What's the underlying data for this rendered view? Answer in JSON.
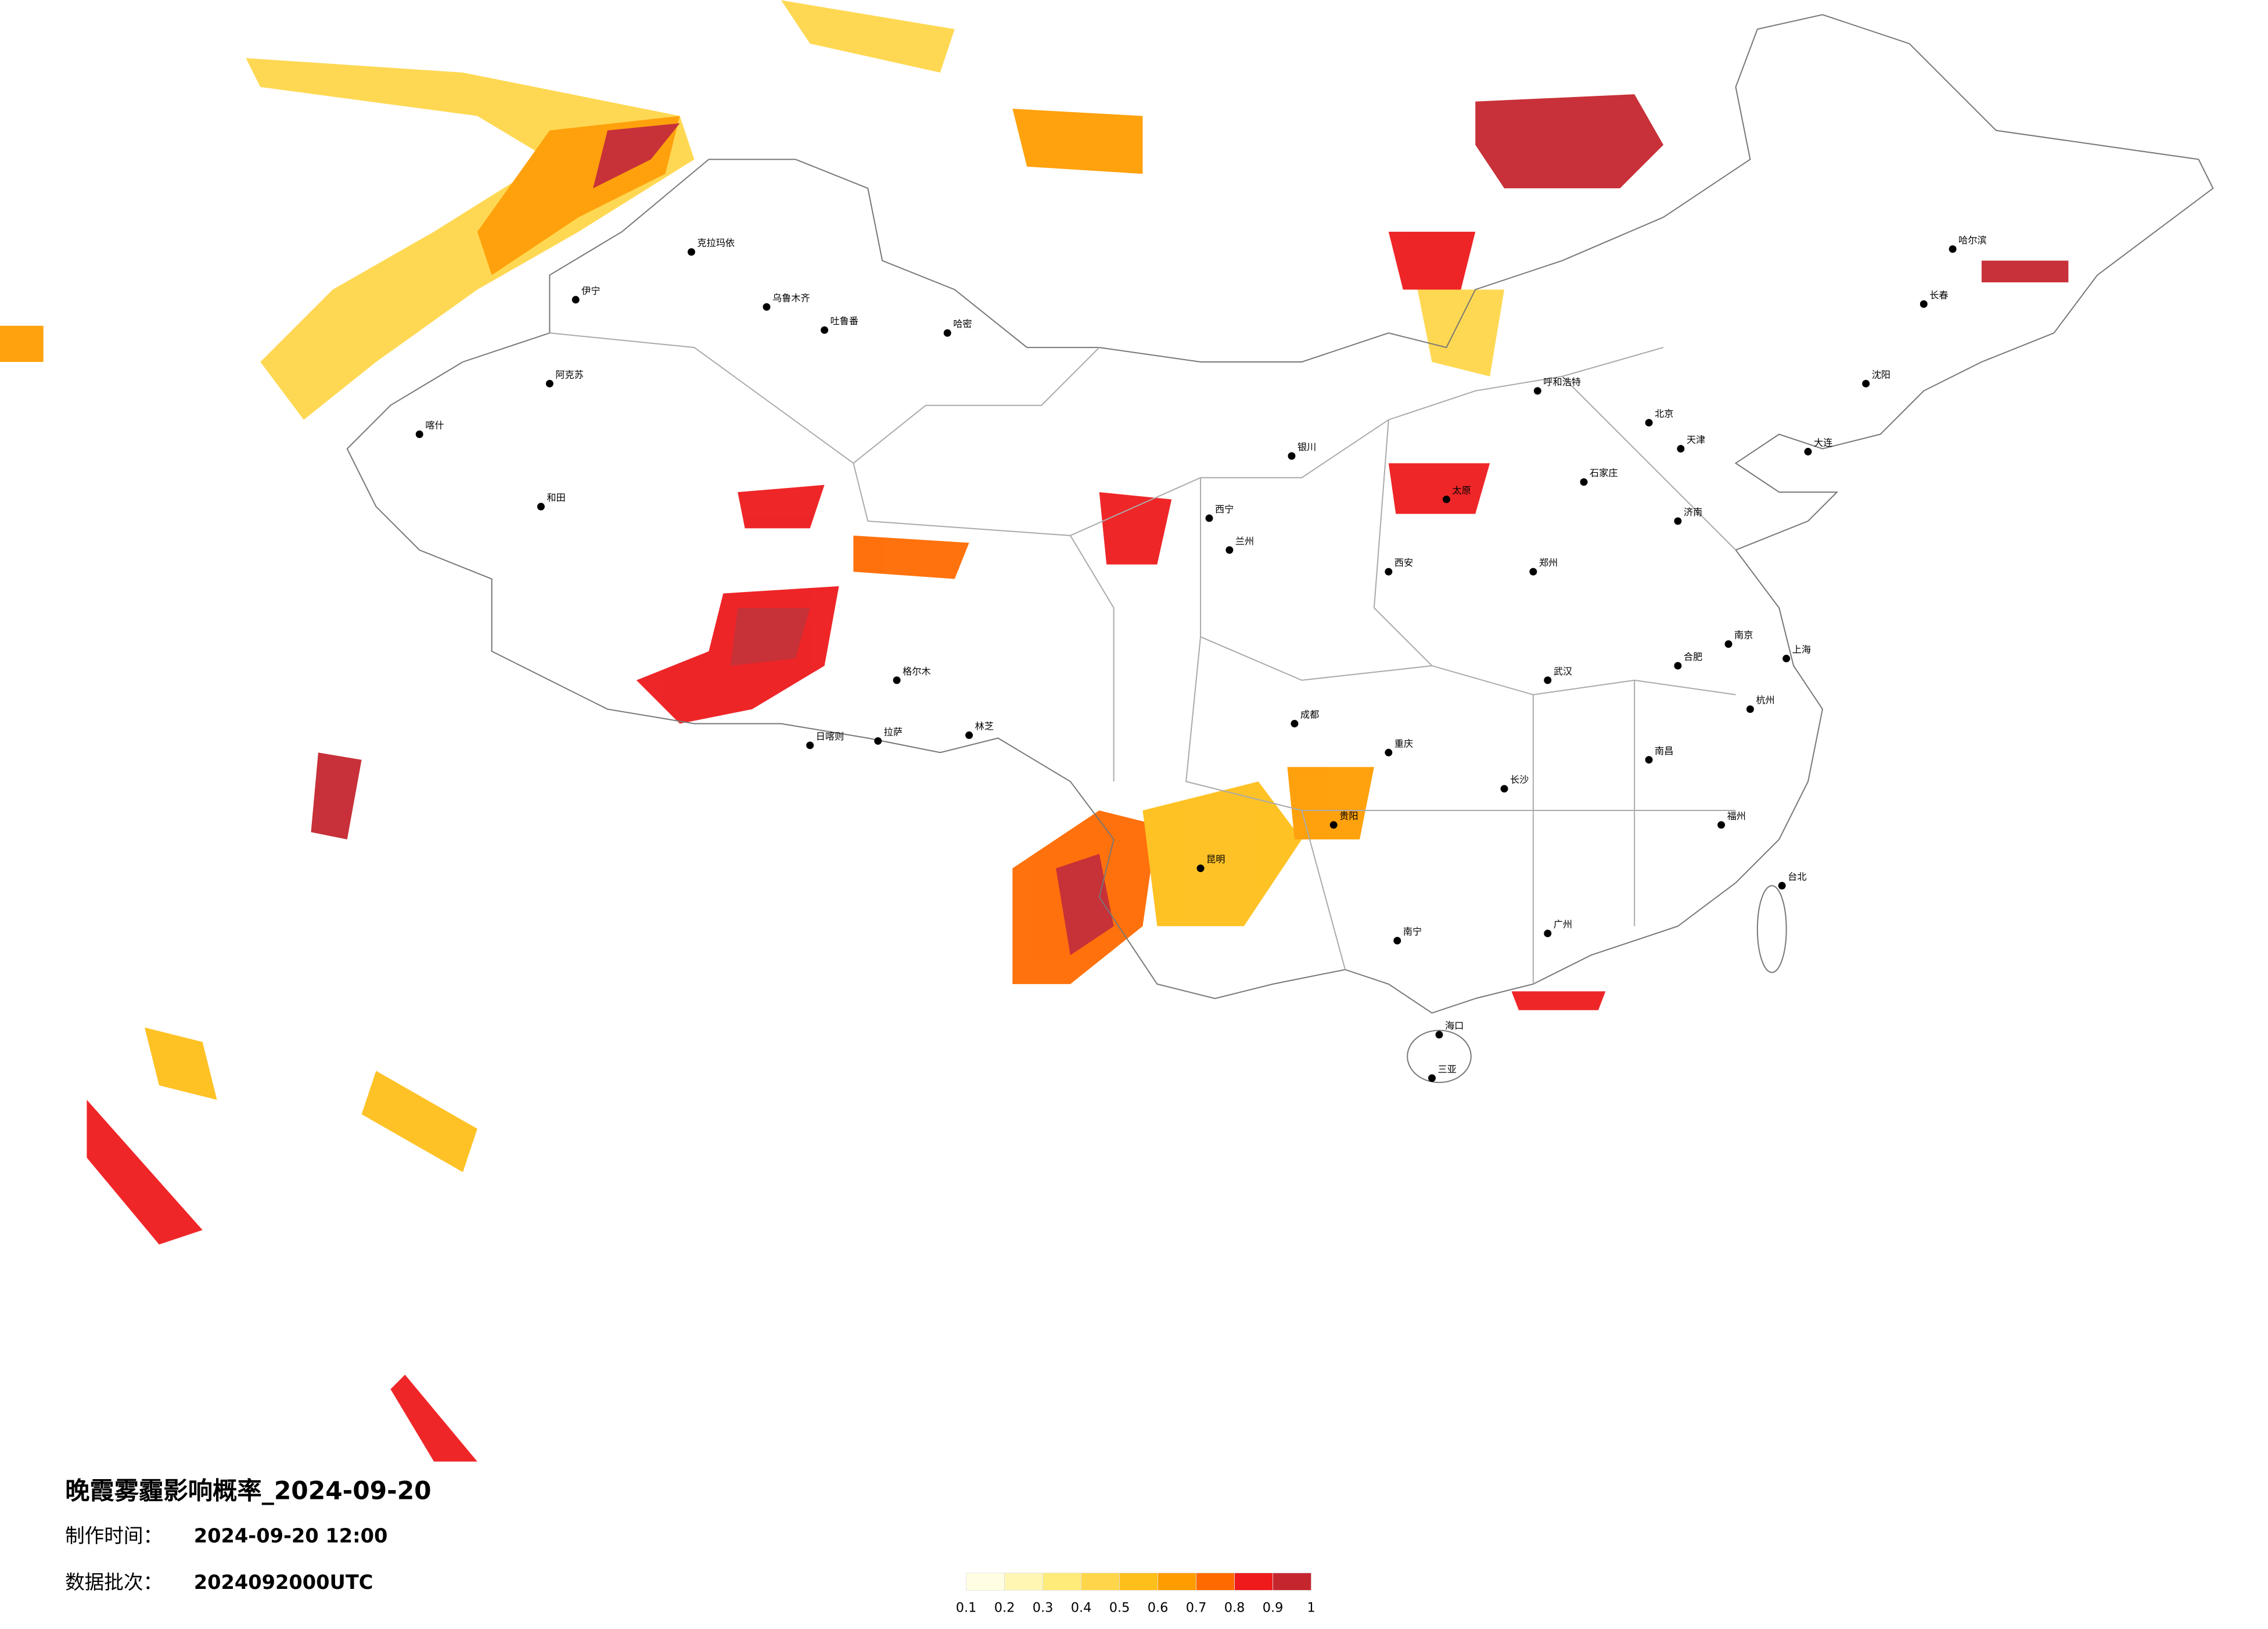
{
  "title": "晚霞雾霾影响概率_2024-09-20",
  "info": [
    {
      "label": "制作时间：",
      "value": "2024-09-20 12:00"
    },
    {
      "label": "数据批次：",
      "value": "2024092000UTC"
    }
  ],
  "legend": {
    "colors": [
      "#fffde2",
      "#fff6b4",
      "#ffeb7a",
      "#ffd64a",
      "#ffbf1a",
      "#ff9d00",
      "#ff6a00",
      "#ee1a1c",
      "#c5262e"
    ],
    "ticks": [
      0.1,
      0.2,
      0.3,
      0.4,
      0.5,
      0.6,
      0.7,
      0.8,
      0.9,
      1
    ]
  },
  "cities": [
    "乌鲁木齐",
    "克拉玛依",
    "伊宁",
    "阿克苏",
    "和田",
    "喀什",
    "吐鲁番",
    "哈密",
    "拉萨",
    "日喀则",
    "林芝",
    "格尔木",
    "西宁",
    "兰州",
    "银川",
    "呼和浩特",
    "北京",
    "天津",
    "哈尔滨",
    "长春",
    "沈阳",
    "大连",
    "济南",
    "郑州",
    "西安",
    "太原",
    "石家庄",
    "成都",
    "重庆",
    "贵阳",
    "昆明",
    "南宁",
    "广州",
    "长沙",
    "武汉",
    "南昌",
    "合肥",
    "南京",
    "上海",
    "杭州",
    "福州",
    "台北",
    "海口",
    "三亚"
  ]
}
